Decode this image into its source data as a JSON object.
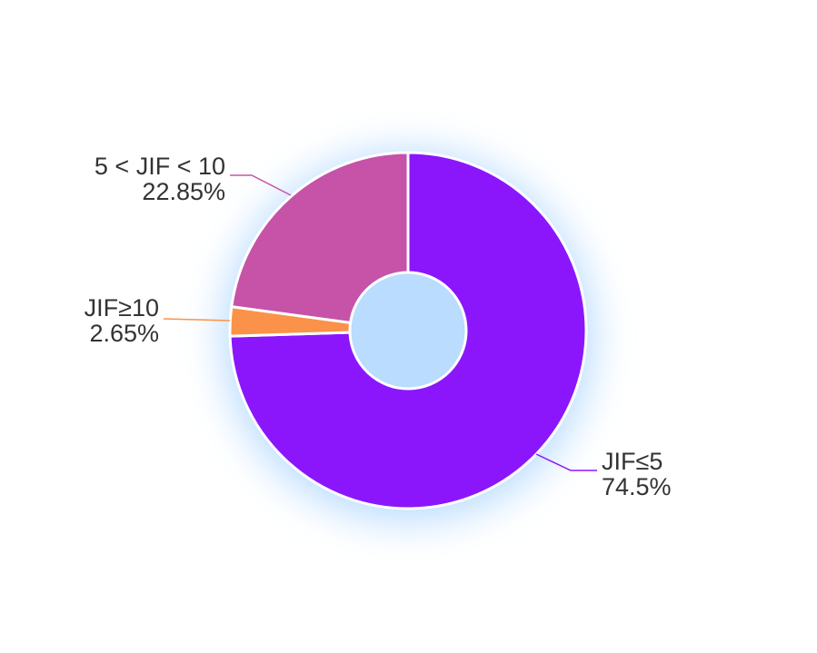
{
  "chart_data": {
    "type": "pie",
    "style": "donut",
    "title": "",
    "slices": [
      {
        "label": "JIF≤5",
        "value": 74.5,
        "value_label": "74.5%",
        "color": "#8b16fb"
      },
      {
        "label": "JIF≥10",
        "value": 2.65,
        "value_label": "2.65%",
        "color": "#fa9249"
      },
      {
        "label": "5 < JIF < 10",
        "value": 22.85,
        "value_label": "22.85%",
        "color": "#c653a7"
      }
    ],
    "start_angle_deg": 0,
    "direction": "clockwise",
    "legend": "none",
    "shadow_color": "#b9dcff"
  }
}
